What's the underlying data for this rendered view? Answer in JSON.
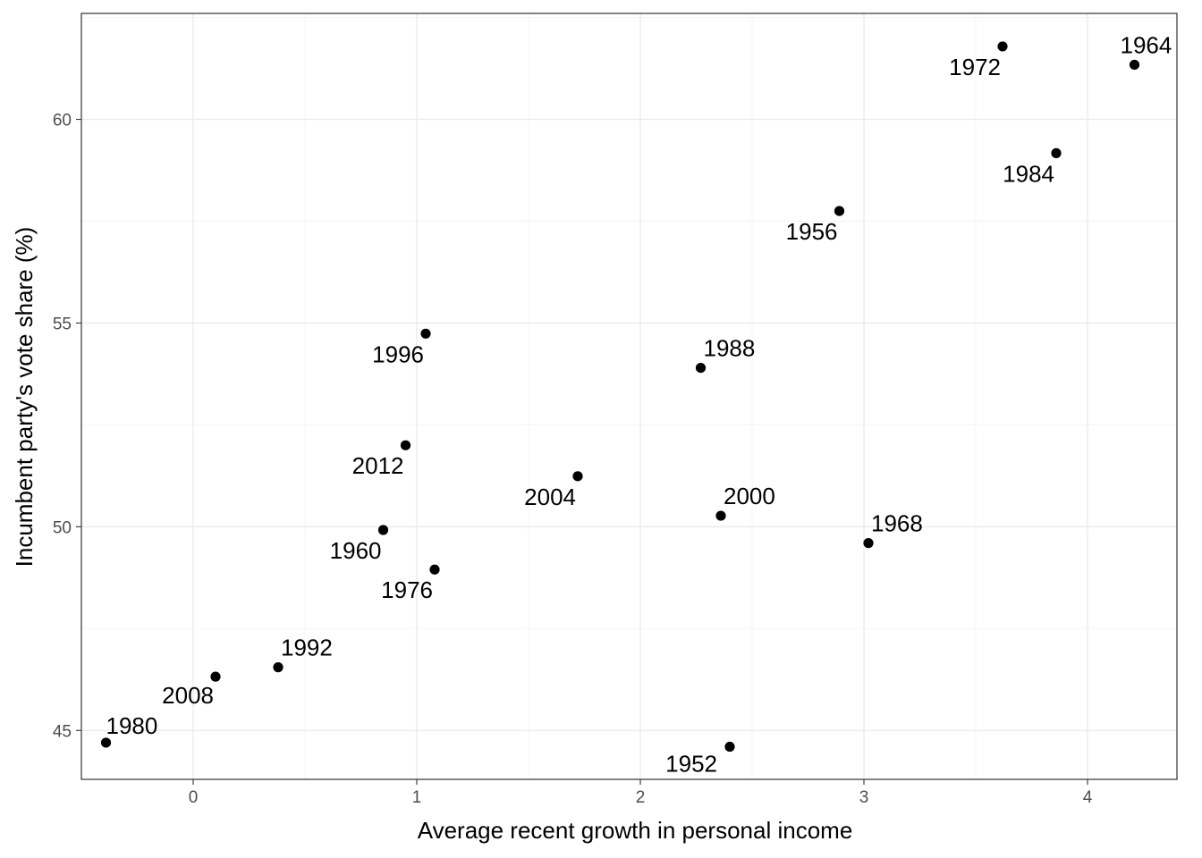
{
  "chart_data": {
    "type": "scatter",
    "title": "",
    "xlabel": "Average recent growth in personal income",
    "ylabel": "Incumbent party's vote share (%)",
    "xlim": [
      -0.5,
      4.4
    ],
    "ylim": [
      43.8,
      62.6
    ],
    "x_ticks": [
      0,
      1,
      2,
      3,
      4
    ],
    "y_ticks": [
      45,
      50,
      55,
      60
    ],
    "x_tick_labels": [
      "0",
      "1",
      "2",
      "3",
      "4"
    ],
    "y_tick_labels": [
      "45",
      "50",
      "55",
      "60"
    ],
    "grid": true,
    "legend": "none",
    "point_color": "#000000",
    "points": [
      {
        "label": "1952",
        "x": 2.4,
        "y": 44.6
      },
      {
        "label": "1956",
        "x": 2.89,
        "y": 57.75
      },
      {
        "label": "1960",
        "x": 0.85,
        "y": 49.92
      },
      {
        "label": "1964",
        "x": 4.21,
        "y": 61.34
      },
      {
        "label": "1968",
        "x": 3.02,
        "y": 49.6
      },
      {
        "label": "1972",
        "x": 3.62,
        "y": 61.79
      },
      {
        "label": "1976",
        "x": 1.08,
        "y": 48.95
      },
      {
        "label": "1980",
        "x": -0.39,
        "y": 44.7
      },
      {
        "label": "1984",
        "x": 3.86,
        "y": 59.17
      },
      {
        "label": "1988",
        "x": 2.27,
        "y": 53.9
      },
      {
        "label": "1992",
        "x": 0.38,
        "y": 46.55
      },
      {
        "label": "1996",
        "x": 1.04,
        "y": 54.74
      },
      {
        "label": "2000",
        "x": 2.36,
        "y": 50.27
      },
      {
        "label": "2004",
        "x": 1.72,
        "y": 51.24
      },
      {
        "label": "2008",
        "x": 0.1,
        "y": 46.32
      },
      {
        "label": "2012",
        "x": 0.95,
        "y": 52.0
      }
    ]
  }
}
